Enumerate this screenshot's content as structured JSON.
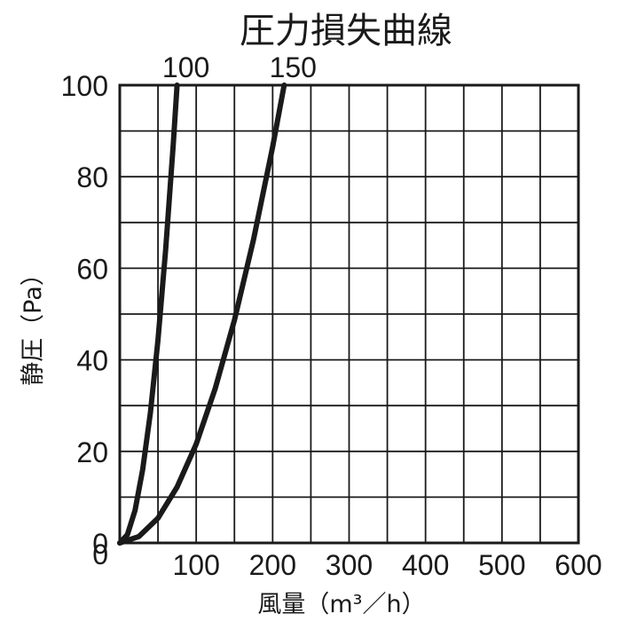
{
  "chart_data": {
    "type": "line",
    "title": "圧力損失曲線",
    "xlabel": "風量（m³／h）",
    "ylabel": "静圧（Pa）",
    "xlim": [
      0,
      600
    ],
    "ylim": [
      0,
      100
    ],
    "x_ticks": [
      "100",
      "200",
      "300",
      "400",
      "500",
      "600"
    ],
    "x_origin_label": "0",
    "y_ticks": [
      "0",
      "20",
      "40",
      "60",
      "80",
      "100"
    ],
    "grid": true,
    "series": [
      {
        "name": "100",
        "x": [
          0,
          10,
          20,
          30,
          40,
          50,
          60,
          70,
          75
        ],
        "y": [
          0,
          1.8,
          7.1,
          16.0,
          28.4,
          44.4,
          64.0,
          87.1,
          100
        ]
      },
      {
        "name": "150",
        "x": [
          0,
          25,
          50,
          75,
          100,
          125,
          150,
          175,
          200,
          215
        ],
        "y": [
          0,
          1.4,
          5.4,
          12.2,
          21.6,
          33.8,
          48.7,
          66.3,
          86.5,
          100
        ]
      }
    ],
    "line_color": "#1a1a1a"
  }
}
